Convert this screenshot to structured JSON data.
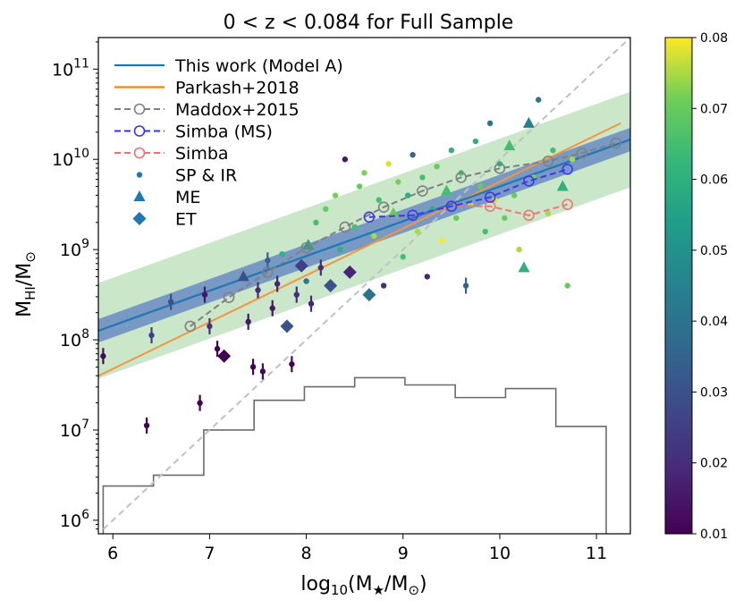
{
  "chart_data": {
    "type": "scatter",
    "title": "0 < z < 0.084 for Full Sample",
    "xlabel": {
      "base": "log",
      "base_sub": "10",
      "main": "(M",
      "main_sub": "★",
      "mid": "/M",
      "mid_sub": "⊙",
      "end": ")"
    },
    "ylabel": {
      "base": "M",
      "base_sub": "HI",
      "mid": "/M",
      "mid_sub": "⊙"
    },
    "xlim": [
      5.85,
      11.35
    ],
    "ylim_log10": [
      5.85,
      11.35
    ],
    "xticks": [
      6,
      7,
      8,
      9,
      10,
      11
    ],
    "yticks": [
      {
        "exp": 6,
        "base": "10",
        "sup": "6"
      },
      {
        "exp": 7,
        "base": "10",
        "sup": "7"
      },
      {
        "exp": 8,
        "base": "10",
        "sup": "8"
      },
      {
        "exp": 9,
        "base": "10",
        "sup": "9"
      },
      {
        "exp": 10,
        "base": "10",
        "sup": "10"
      },
      {
        "exp": 11,
        "base": "10",
        "sup": "11"
      }
    ],
    "colorbar": {
      "label_ticks": [
        "0.01",
        "0.02",
        "0.03",
        "0.04",
        "0.05",
        "0.06",
        "0.07",
        "0.08"
      ],
      "range": [
        0.01,
        0.08
      ],
      "cmap": "viridis"
    },
    "legend": [
      {
        "label": "This work (Model A)",
        "kind": "line",
        "color": "#1f77b4"
      },
      {
        "label": "Parkash+2018",
        "kind": "line",
        "color": "#ff7f0e"
      },
      {
        "label": "Maddox+2015",
        "kind": "dashed-circle",
        "color": "#808080"
      },
      {
        "label": "Simba (MS)",
        "kind": "dashed-circle",
        "color": "#3333ff"
      },
      {
        "label": "Simba",
        "kind": "dashed-circle",
        "color": "#f07070"
      },
      {
        "label": "SP & IR",
        "kind": "dot",
        "color": "#1f77b4"
      },
      {
        "label": "ME",
        "kind": "triangle",
        "color": "#1f77b4"
      },
      {
        "label": "ET",
        "kind": "diamond",
        "color": "#1f77b4"
      }
    ],
    "this_work": {
      "x": [
        5.85,
        11.35
      ],
      "logy": [
        8.1,
        10.22
      ],
      "band_inner": 0.13,
      "band_outer": 0.53
    },
    "parkash": {
      "x": [
        5.85,
        11.25
      ],
      "logy": [
        7.6,
        10.4
      ]
    },
    "one_to_one": {
      "x": [
        5.9,
        11.35
      ],
      "logy": [
        5.9,
        11.35
      ]
    },
    "maddox": {
      "x": [
        6.8,
        7.2,
        7.6,
        8.0,
        8.4,
        8.8,
        9.2,
        9.6,
        10.0,
        10.5,
        10.85,
        11.2
      ],
      "logy": [
        8.15,
        8.47,
        8.75,
        9.02,
        9.25,
        9.47,
        9.65,
        9.8,
        9.9,
        9.98,
        10.07,
        10.18
      ]
    },
    "simba_ms": {
      "x": [
        8.65,
        9.1,
        9.5,
        9.9,
        10.3,
        10.7
      ],
      "logy": [
        9.36,
        9.38,
        9.48,
        9.58,
        9.76,
        9.89
      ]
    },
    "simba": {
      "x": [
        8.65,
        9.1,
        9.5,
        9.9,
        10.3,
        10.7
      ],
      "logy": [
        9.36,
        9.38,
        9.48,
        9.48,
        9.38,
        9.5
      ]
    },
    "histogram": {
      "edges": [
        5.9,
        6.42,
        6.94,
        7.46,
        7.98,
        8.5,
        9.02,
        9.54,
        10.06,
        10.58,
        11.1
      ],
      "logy": [
        6.38,
        6.5,
        7.0,
        7.33,
        7.48,
        7.58,
        7.5,
        7.36,
        7.46,
        7.04
      ]
    },
    "points": [
      {
        "x": 5.9,
        "logy": 7.82,
        "z": 0.012,
        "m": "o",
        "err": true
      },
      {
        "x": 6.35,
        "logy": 7.05,
        "z": 0.01,
        "m": "o",
        "err": true
      },
      {
        "x": 6.4,
        "logy": 8.05,
        "z": 0.025,
        "m": "o",
        "err": true
      },
      {
        "x": 6.6,
        "logy": 8.42,
        "z": 0.03,
        "m": "o",
        "err": true
      },
      {
        "x": 6.9,
        "logy": 7.3,
        "z": 0.01,
        "m": "o",
        "err": true
      },
      {
        "x": 6.95,
        "logy": 8.5,
        "z": 0.015,
        "m": "o",
        "err": true
      },
      {
        "x": 7.0,
        "logy": 8.15,
        "z": 0.02,
        "m": "o",
        "err": true
      },
      {
        "x": 7.08,
        "logy": 7.9,
        "z": 0.01,
        "m": "o",
        "err": true
      },
      {
        "x": 7.15,
        "logy": 7.82,
        "z": 0.01,
        "m": "D",
        "err": false
      },
      {
        "x": 7.35,
        "logy": 8.7,
        "z": 0.03,
        "m": "^",
        "err": false
      },
      {
        "x": 7.4,
        "logy": 8.2,
        "z": 0.015,
        "m": "o",
        "err": true
      },
      {
        "x": 7.45,
        "logy": 7.7,
        "z": 0.01,
        "m": "o",
        "err": true
      },
      {
        "x": 7.5,
        "logy": 8.55,
        "z": 0.02,
        "m": "o",
        "err": true
      },
      {
        "x": 7.55,
        "logy": 7.65,
        "z": 0.012,
        "m": "o",
        "err": true
      },
      {
        "x": 7.6,
        "logy": 8.88,
        "z": 0.035,
        "m": "o",
        "err": true
      },
      {
        "x": 7.65,
        "logy": 8.35,
        "z": 0.015,
        "m": "o",
        "err": true
      },
      {
        "x": 7.7,
        "logy": 8.62,
        "z": 0.018,
        "m": "o",
        "err": true
      },
      {
        "x": 7.75,
        "logy": 8.95,
        "z": 0.06,
        "m": "o",
        "err": false
      },
      {
        "x": 7.8,
        "logy": 8.15,
        "z": 0.03,
        "m": "D",
        "err": false
      },
      {
        "x": 7.85,
        "logy": 7.73,
        "z": 0.011,
        "m": "o",
        "err": true
      },
      {
        "x": 7.9,
        "logy": 8.5,
        "z": 0.02,
        "m": "o",
        "err": true
      },
      {
        "x": 7.95,
        "logy": 8.82,
        "z": 0.025,
        "m": "D",
        "err": false
      },
      {
        "x": 8.0,
        "logy": 8.65,
        "z": 0.04,
        "m": "o",
        "err": false
      },
      {
        "x": 8.02,
        "logy": 9.05,
        "z": 0.055,
        "m": "^",
        "err": false
      },
      {
        "x": 8.05,
        "logy": 8.4,
        "z": 0.018,
        "m": "o",
        "err": true
      },
      {
        "x": 8.1,
        "logy": 9.3,
        "z": 0.065,
        "m": "o",
        "err": false
      },
      {
        "x": 8.15,
        "logy": 8.8,
        "z": 0.02,
        "m": "o",
        "err": true
      },
      {
        "x": 8.2,
        "logy": 9.45,
        "z": 0.07,
        "m": "o",
        "err": false
      },
      {
        "x": 8.25,
        "logy": 8.6,
        "z": 0.03,
        "m": "D",
        "err": false
      },
      {
        "x": 8.3,
        "logy": 9.6,
        "z": 0.072,
        "m": "o",
        "err": false
      },
      {
        "x": 8.35,
        "logy": 9.0,
        "z": 0.06,
        "m": "o",
        "err": false
      },
      {
        "x": 8.4,
        "logy": 10.0,
        "z": 0.015,
        "m": "o",
        "err": false
      },
      {
        "x": 8.45,
        "logy": 8.75,
        "z": 0.018,
        "m": "D",
        "err": false
      },
      {
        "x": 8.5,
        "logy": 9.25,
        "z": 0.065,
        "m": "o",
        "err": false
      },
      {
        "x": 8.55,
        "logy": 9.7,
        "z": 0.07,
        "m": "o",
        "err": false
      },
      {
        "x": 8.6,
        "logy": 9.85,
        "z": 0.072,
        "m": "o",
        "err": false
      },
      {
        "x": 8.65,
        "logy": 8.5,
        "z": 0.04,
        "m": "D",
        "err": false
      },
      {
        "x": 8.7,
        "logy": 9.15,
        "z": 0.075,
        "m": "o",
        "err": false
      },
      {
        "x": 8.75,
        "logy": 9.55,
        "z": 0.065,
        "m": "o",
        "err": false
      },
      {
        "x": 8.8,
        "logy": 8.6,
        "z": 0.02,
        "m": "o",
        "err": false
      },
      {
        "x": 8.85,
        "logy": 9.95,
        "z": 0.078,
        "m": "o",
        "err": false
      },
      {
        "x": 8.9,
        "logy": 9.4,
        "z": 0.07,
        "m": "^",
        "err": false
      },
      {
        "x": 8.95,
        "logy": 9.75,
        "z": 0.072,
        "m": "o",
        "err": false
      },
      {
        "x": 9.0,
        "logy": 8.92,
        "z": 0.065,
        "m": "o",
        "err": false
      },
      {
        "x": 9.05,
        "logy": 9.6,
        "z": 0.06,
        "m": "o",
        "err": false
      },
      {
        "x": 9.1,
        "logy": 10.05,
        "z": 0.035,
        "m": "o",
        "err": false
      },
      {
        "x": 9.15,
        "logy": 9.2,
        "z": 0.075,
        "m": "o",
        "err": false
      },
      {
        "x": 9.2,
        "logy": 9.8,
        "z": 0.065,
        "m": "o",
        "err": false
      },
      {
        "x": 9.25,
        "logy": 8.7,
        "z": 0.018,
        "m": "o",
        "err": false
      },
      {
        "x": 9.3,
        "logy": 9.45,
        "z": 0.06,
        "m": "o",
        "err": false
      },
      {
        "x": 9.35,
        "logy": 9.92,
        "z": 0.07,
        "m": "o",
        "err": false
      },
      {
        "x": 9.4,
        "logy": 9.1,
        "z": 0.08,
        "m": "o",
        "err": false
      },
      {
        "x": 9.45,
        "logy": 9.65,
        "z": 0.065,
        "m": "^",
        "err": false
      },
      {
        "x": 9.5,
        "logy": 10.1,
        "z": 0.06,
        "m": "o",
        "err": false
      },
      {
        "x": 9.55,
        "logy": 9.35,
        "z": 0.07,
        "m": "o",
        "err": false
      },
      {
        "x": 9.6,
        "logy": 9.85,
        "z": 0.065,
        "m": "o",
        "err": false
      },
      {
        "x": 9.65,
        "logy": 8.6,
        "z": 0.035,
        "m": "o",
        "err": true
      },
      {
        "x": 9.7,
        "logy": 9.5,
        "z": 0.075,
        "m": "o",
        "err": false
      },
      {
        "x": 9.75,
        "logy": 10.2,
        "z": 0.06,
        "m": "o",
        "err": false
      },
      {
        "x": 9.8,
        "logy": 9.7,
        "z": 0.07,
        "m": "o",
        "err": false
      },
      {
        "x": 9.85,
        "logy": 9.2,
        "z": 0.065,
        "m": "o",
        "err": false
      },
      {
        "x": 9.9,
        "logy": 10.4,
        "z": 0.04,
        "m": "o",
        "err": false
      },
      {
        "x": 9.95,
        "logy": 9.55,
        "z": 0.078,
        "m": "o",
        "err": false
      },
      {
        "x": 10.0,
        "logy": 9.95,
        "z": 0.06,
        "m": "o",
        "err": false
      },
      {
        "x": 10.05,
        "logy": 9.35,
        "z": 0.07,
        "m": "o",
        "err": false
      },
      {
        "x": 10.1,
        "logy": 10.15,
        "z": 0.065,
        "m": "^",
        "err": false
      },
      {
        "x": 10.15,
        "logy": 9.6,
        "z": 0.07,
        "m": "o",
        "err": false
      },
      {
        "x": 10.2,
        "logy": 9.0,
        "z": 0.075,
        "m": "o",
        "err": false
      },
      {
        "x": 10.25,
        "logy": 8.8,
        "z": 0.06,
        "m": "^",
        "err": false
      },
      {
        "x": 10.3,
        "logy": 10.4,
        "z": 0.045,
        "m": "^",
        "err": false
      },
      {
        "x": 10.35,
        "logy": 9.8,
        "z": 0.072,
        "m": "o",
        "err": false
      },
      {
        "x": 10.4,
        "logy": 10.66,
        "z": 0.04,
        "m": "o",
        "err": false
      },
      {
        "x": 10.5,
        "logy": 9.4,
        "z": 0.075,
        "m": "o",
        "err": false
      },
      {
        "x": 10.55,
        "logy": 10.1,
        "z": 0.065,
        "m": "o",
        "err": false
      },
      {
        "x": 10.65,
        "logy": 9.7,
        "z": 0.06,
        "m": "^",
        "err": false
      },
      {
        "x": 10.7,
        "logy": 8.6,
        "z": 0.07,
        "m": "o",
        "err": false
      },
      {
        "x": 10.75,
        "logy": 10.0,
        "z": 0.075,
        "m": "o",
        "err": false
      }
    ]
  }
}
